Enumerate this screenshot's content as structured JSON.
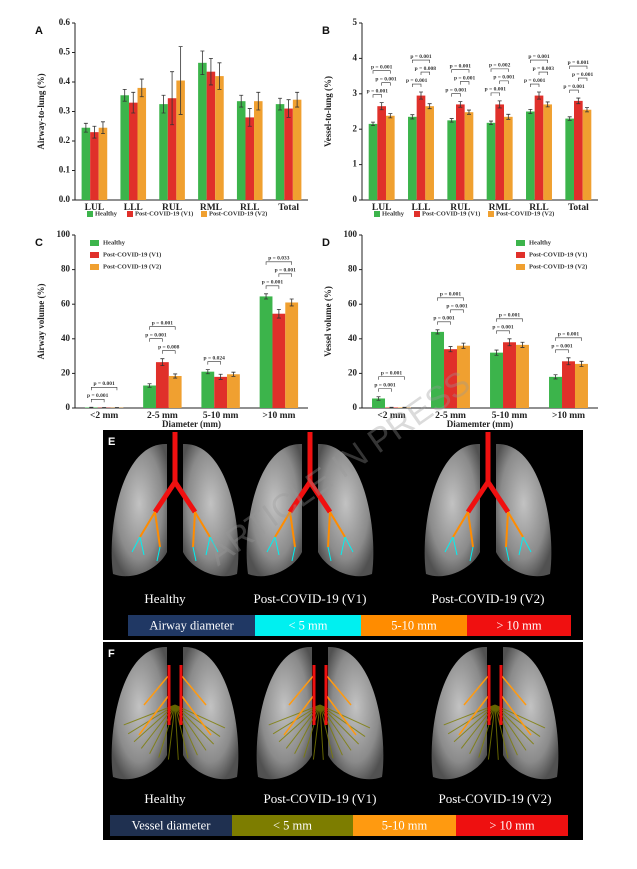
{
  "chart_data": [
    {
      "type": "bar",
      "panel": "A",
      "ylabel": "Airway-to-lung (%)",
      "categories": [
        "LUL",
        "LLL",
        "RUL",
        "RML",
        "RLL",
        "Total"
      ],
      "ylim": [
        0,
        0.6
      ],
      "yticks": [
        {
          "value": 0,
          "label": "0.0"
        },
        0.1,
        0.2,
        0.3,
        0.4,
        0.5,
        0.6
      ],
      "legend": "below",
      "series": [
        {
          "name": "Healthy",
          "color": "#3cb44b",
          "values": [
            0.245,
            0.355,
            0.325,
            0.465,
            0.335,
            0.325
          ],
          "errors": [
            0.015,
            0.02,
            0.03,
            0.04,
            0.02,
            0.02
          ]
        },
        {
          "name": "Post-COVID-19 (V1)",
          "color": "#e0302a",
          "values": [
            0.23,
            0.33,
            0.345,
            0.435,
            0.28,
            0.31
          ],
          "errors": [
            0.02,
            0.035,
            0.09,
            0.045,
            0.03,
            0.03
          ]
        },
        {
          "name": "Post-COVID-19 (V2)",
          "color": "#f0a030",
          "values": [
            0.245,
            0.38,
            0.405,
            0.42,
            0.335,
            0.34
          ],
          "errors": [
            0.02,
            0.03,
            0.115,
            0.045,
            0.03,
            0.025
          ]
        }
      ],
      "annotations": []
    },
    {
      "type": "bar",
      "panel": "B",
      "ylabel": "Vessel-to-lung (%)",
      "categories": [
        "LUL",
        "LLL",
        "RUL",
        "RML",
        "RLL",
        "Total"
      ],
      "ylim": [
        0,
        5
      ],
      "yticks": [
        0,
        1,
        2,
        3,
        4,
        5
      ],
      "legend": "below",
      "series": [
        {
          "name": "Healthy",
          "color": "#3cb44b",
          "values": [
            2.15,
            2.35,
            2.25,
            2.18,
            2.5,
            2.3
          ],
          "errors": [
            0.05,
            0.06,
            0.05,
            0.05,
            0.06,
            0.05
          ]
        },
        {
          "name": "Post-COVID-19 (V1)",
          "color": "#e0302a",
          "values": [
            2.65,
            2.95,
            2.7,
            2.7,
            2.95,
            2.8
          ],
          "errors": [
            0.1,
            0.1,
            0.08,
            0.1,
            0.1,
            0.08
          ]
        },
        {
          "name": "Post-COVID-19 (V2)",
          "color": "#f0a030",
          "values": [
            2.38,
            2.65,
            2.48,
            2.35,
            2.7,
            2.55
          ],
          "errors": [
            0.06,
            0.07,
            0.06,
            0.07,
            0.07,
            0.06
          ]
        }
      ],
      "annotations": [
        {
          "category": 0,
          "pair": [
            0,
            1
          ],
          "text": "p = 0.001"
        },
        {
          "category": 0,
          "pair": [
            1,
            2
          ],
          "text": "p = 0.001"
        },
        {
          "category": 0,
          "pair": [
            0,
            2
          ],
          "text": "p = 0.001"
        },
        {
          "category": 1,
          "pair": [
            0,
            1
          ],
          "text": "p = 0.001"
        },
        {
          "category": 1,
          "pair": [
            1,
            2
          ],
          "text": "p = 0.008"
        },
        {
          "category": 1,
          "pair": [
            0,
            2
          ],
          "text": "p = 0.001"
        },
        {
          "category": 2,
          "pair": [
            0,
            1
          ],
          "text": "p = 0.001"
        },
        {
          "category": 2,
          "pair": [
            1,
            2
          ],
          "text": "p = 0.001"
        },
        {
          "category": 2,
          "pair": [
            0,
            2
          ],
          "text": "p = 0.001"
        },
        {
          "category": 3,
          "pair": [
            0,
            1
          ],
          "text": "p = 0.001"
        },
        {
          "category": 3,
          "pair": [
            1,
            2
          ],
          "text": "p = 0.001"
        },
        {
          "category": 3,
          "pair": [
            0,
            2
          ],
          "text": "p = 0.002"
        },
        {
          "category": 4,
          "pair": [
            0,
            1
          ],
          "text": "p = 0.001"
        },
        {
          "category": 4,
          "pair": [
            1,
            2
          ],
          "text": "p = 0.003"
        },
        {
          "category": 4,
          "pair": [
            0,
            2
          ],
          "text": "p = 0.001"
        },
        {
          "category": 5,
          "pair": [
            0,
            1
          ],
          "text": "p = 0.001"
        },
        {
          "category": 5,
          "pair": [
            1,
            2
          ],
          "text": "p = 0.001"
        },
        {
          "category": 5,
          "pair": [
            0,
            2
          ],
          "text": "p = 0.001"
        }
      ]
    },
    {
      "type": "bar",
      "panel": "C",
      "ylabel": "Airway volume (%)",
      "xlabel": "Diameter (mm)",
      "categories": [
        "<2 mm",
        "2-5 mm",
        "5-10 mm",
        ">10 mm"
      ],
      "ylim": [
        0,
        100
      ],
      "yticks": [
        0,
        20,
        40,
        60,
        80,
        100
      ],
      "legend": "upper left",
      "series": [
        {
          "name": "Healthy",
          "color": "#3cb44b",
          "values": [
            0.3,
            13,
            21,
            64.5
          ],
          "errors": [
            0.1,
            1,
            1.2,
            1.5
          ]
        },
        {
          "name": "Post-COVID-19 (V1)",
          "color": "#e0302a",
          "values": [
            0.2,
            26.5,
            18,
            54.5
          ],
          "errors": [
            0.1,
            2,
            1.5,
            2.5
          ]
        },
        {
          "name": "Post-COVID-19 (V2)",
          "color": "#f0a030",
          "values": [
            0.2,
            18.5,
            19.5,
            61
          ],
          "errors": [
            0.1,
            1.2,
            1.2,
            2
          ]
        }
      ],
      "annotations": [
        {
          "category": 0,
          "pair": [
            0,
            1
          ],
          "text": "p = 0.001"
        },
        {
          "category": 0,
          "pair": [
            0,
            2
          ],
          "text": "p = 0.001"
        },
        {
          "category": 1,
          "pair": [
            1,
            2
          ],
          "text": "p = 0.008"
        },
        {
          "category": 1,
          "pair": [
            0,
            1
          ],
          "text": "p = 0.001"
        },
        {
          "category": 1,
          "pair": [
            0,
            2
          ],
          "text": "p = 0.001"
        },
        {
          "category": 2,
          "pair": [
            0,
            1
          ],
          "text": "p = 0.024"
        },
        {
          "category": 3,
          "pair": [
            0,
            1
          ],
          "text": "p = 0.001"
        },
        {
          "category": 3,
          "pair": [
            1,
            2
          ],
          "text": "p = 0.001"
        },
        {
          "category": 3,
          "pair": [
            0,
            2
          ],
          "text": "p = 0.033"
        }
      ]
    },
    {
      "type": "bar",
      "panel": "D",
      "ylabel": "Vessel volume (%)",
      "xlabel": "Diamemter (mm)",
      "categories": [
        "<2 mm",
        "2-5 mm",
        "5-10 mm",
        ">10 mm"
      ],
      "ylim": [
        0,
        100
      ],
      "yticks": [
        0,
        20,
        40,
        60,
        80,
        100
      ],
      "legend": "upper right",
      "series": [
        {
          "name": "Healthy",
          "color": "#3cb44b",
          "values": [
            5.5,
            44,
            32,
            18
          ],
          "errors": [
            1,
            1.2,
            1.5,
            1.2
          ]
        },
        {
          "name": "Post-COVID-19 (V1)",
          "color": "#e0302a",
          "values": [
            0.3,
            34,
            38,
            27
          ],
          "errors": [
            0.1,
            1.5,
            2,
            2
          ]
        },
        {
          "name": "Post-COVID-19 (V2)",
          "color": "#f0a030",
          "values": [
            0.3,
            36,
            36.5,
            25.5
          ],
          "errors": [
            0.1,
            1.5,
            1.5,
            1.5
          ]
        }
      ],
      "annotations": [
        {
          "category": 0,
          "pair": [
            0,
            1
          ],
          "text": "p = 0.001"
        },
        {
          "category": 0,
          "pair": [
            0,
            2
          ],
          "text": "p = 0.001"
        },
        {
          "category": 1,
          "pair": [
            0,
            1
          ],
          "text": "p = 0.001"
        },
        {
          "category": 1,
          "pair": [
            1,
            2
          ],
          "text": "p = 0.001"
        },
        {
          "category": 1,
          "pair": [
            0,
            2
          ],
          "text": "p = 0.001"
        },
        {
          "category": 2,
          "pair": [
            0,
            1
          ],
          "text": "p = 0.001"
        },
        {
          "category": 2,
          "pair": [
            0,
            2
          ],
          "text": "p = 0.001"
        },
        {
          "category": 3,
          "pair": [
            0,
            1
          ],
          "text": "p = 0.001"
        },
        {
          "category": 3,
          "pair": [
            0,
            2
          ],
          "text": "p = 0.001"
        }
      ]
    }
  ],
  "panels": [
    {
      "label": "E",
      "captions": [
        "Healthy",
        "Post-COVID-19 (V1)",
        "Post-COVID-19 (V2)"
      ],
      "legend_title": "Airway diameter",
      "legend_title_color": "#203864",
      "legend": [
        {
          "text": "< 5 mm",
          "color": "#00f0f0"
        },
        {
          "text": "5-10 mm",
          "color": "#ff8c00"
        },
        {
          "text": "> 10 mm",
          "color": "#f01010"
        }
      ]
    },
    {
      "label": "F",
      "captions": [
        "Healthy",
        "Post-COVID-19 (V1)",
        "Post-COVID-19 (V2)"
      ],
      "legend_title": "Vessel diameter",
      "legend_title_color": "#1f3050",
      "legend": [
        {
          "text": "< 5 mm",
          "color": "#7d7d00"
        },
        {
          "text": "5-10 mm",
          "color": "#ff9a10"
        },
        {
          "text": "> 10 mm",
          "color": "#ee1010"
        }
      ]
    }
  ],
  "watermark": "ARTICLE IN PRESS"
}
